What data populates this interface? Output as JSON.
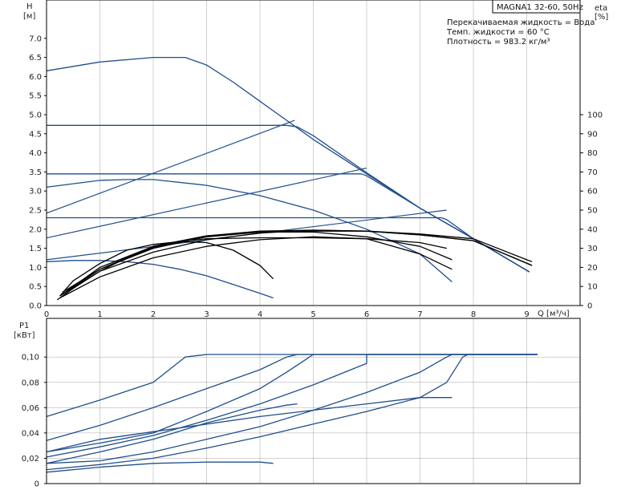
{
  "title": "MAGNA1 32-60, 50Hz",
  "info_lines": [
    "Перекачиваемая жидкость = Вода",
    "Темп. жидкости = 60 °C",
    "Плотность = 983.2 кг/м³"
  ],
  "colors": {
    "curve": "#1f4e8c",
    "efficiency": "#000000",
    "frame": "#000000",
    "text": "#222222"
  },
  "chart_data": [
    {
      "type": "line",
      "name": "pump-performance",
      "ylabel": "H",
      "yunit": "[м]",
      "y2label": "eta",
      "y2unit": "[%]",
      "xlabel": "Q [м³/ч]",
      "xlim": [
        0,
        10
      ],
      "ylim": [
        0,
        7.0
      ],
      "y2lim": [
        0,
        100
      ],
      "x_ticks": [
        "0",
        "1",
        "2",
        "3",
        "4",
        "5",
        "6",
        "7",
        "8",
        "9"
      ],
      "y_ticks": [
        "0.0",
        "0.5",
        "1.0",
        "1.5",
        "2.0",
        "2.5",
        "3.0",
        "3.5",
        "4.0",
        "4.5",
        "5.0",
        "5.5",
        "6.0",
        "6.5",
        "7.0"
      ],
      "y2_ticks": [
        "0",
        "10",
        "20",
        "30",
        "40",
        "50",
        "60",
        "70",
        "80",
        "90",
        "100"
      ],
      "grid": true,
      "hq_curves": [
        {
          "points": [
            [
              0,
              6.15
            ],
            [
              1,
              6.38
            ],
            [
              2,
              6.5
            ],
            [
              2.6,
              6.5
            ],
            [
              3,
              6.3
            ],
            [
              3.5,
              5.85
            ],
            [
              4,
              5.35
            ],
            [
              4.5,
              4.85
            ],
            [
              5,
              4.35
            ],
            [
              6,
              3.45
            ],
            [
              7,
              2.55
            ],
            [
              8,
              1.75
            ],
            [
              9.05,
              0.88
            ]
          ]
        },
        {
          "points": [
            [
              0,
              4.72
            ],
            [
              4.5,
              4.72
            ],
            [
              4.7,
              4.68
            ],
            [
              5,
              4.45
            ],
            [
              6,
              3.48
            ],
            [
              7,
              2.55
            ],
            [
              8,
              1.75
            ],
            [
              9.05,
              0.88
            ]
          ]
        },
        {
          "points": [
            [
              0,
              3.45
            ],
            [
              5.9,
              3.45
            ],
            [
              6,
              3.4
            ],
            [
              7,
              2.55
            ],
            [
              8,
              1.75
            ],
            [
              9.05,
              0.88
            ]
          ]
        },
        {
          "points": [
            [
              0,
              2.3
            ],
            [
              7.4,
              2.3
            ],
            [
              7.5,
              2.25
            ],
            [
              8,
              1.75
            ],
            [
              9.05,
              0.88
            ]
          ]
        },
        {
          "points": [
            [
              0,
              3.1
            ],
            [
              1,
              3.28
            ],
            [
              1.5,
              3.3
            ],
            [
              2,
              3.3
            ],
            [
              3,
              3.15
            ],
            [
              4,
              2.88
            ],
            [
              5,
              2.5
            ],
            [
              6,
              2.0
            ],
            [
              7,
              1.35
            ],
            [
              7.6,
              0.62
            ]
          ]
        },
        {
          "points": [
            [
              0,
              1.15
            ],
            [
              0.5,
              1.18
            ],
            [
              1,
              1.18
            ],
            [
              1.5,
              1.15
            ],
            [
              2,
              1.08
            ],
            [
              2.5,
              0.95
            ],
            [
              3,
              0.78
            ],
            [
              3.5,
              0.55
            ],
            [
              4,
              0.32
            ],
            [
              4.25,
              0.2
            ]
          ]
        }
      ],
      "system_curves": [
        {
          "points": [
            [
              0,
              2.42
            ],
            [
              4.65,
              4.85
            ]
          ]
        },
        {
          "points": [
            [
              0,
              1.77
            ],
            [
              6,
              3.6
            ]
          ]
        },
        {
          "points": [
            [
              0,
              1.2
            ],
            [
              7.5,
              2.5
            ]
          ]
        }
      ],
      "efficiency_curves": [
        {
          "points": [
            [
              0.25,
              5
            ],
            [
              0.5,
              13
            ],
            [
              1,
              22
            ],
            [
              1.5,
              29
            ],
            [
              2,
              32
            ],
            [
              2.5,
              33.5
            ],
            [
              3,
              33
            ],
            [
              3.5,
              29
            ],
            [
              4,
              21
            ],
            [
              4.25,
              14
            ]
          ]
        },
        {
          "points": [
            [
              0.2,
              3
            ],
            [
              0.5,
              9
            ],
            [
              1,
              18
            ],
            [
              1.5,
              25
            ],
            [
              2,
              30.5
            ],
            [
              2.5,
              33.5
            ],
            [
              3,
              35
            ],
            [
              4,
              35.5
            ],
            [
              5,
              35.5
            ],
            [
              6,
              35
            ],
            [
              7,
              33
            ],
            [
              7.5,
              30
            ]
          ]
        },
        {
          "points": [
            [
              0.25,
              4
            ],
            [
              1,
              15
            ],
            [
              2,
              25
            ],
            [
              3,
              31
            ],
            [
              4,
              34.5
            ],
            [
              5,
              36
            ],
            [
              6,
              35
            ],
            [
              7,
              27
            ],
            [
              7.6,
              19
            ]
          ]
        },
        {
          "points": [
            [
              0.3,
              7
            ],
            [
              1,
              19
            ],
            [
              2,
              31
            ],
            [
              3,
              36.5
            ],
            [
              4,
              38.5
            ],
            [
              5,
              38.5
            ],
            [
              6,
              36
            ],
            [
              7,
              31
            ],
            [
              7.6,
              24
            ]
          ]
        },
        {
          "points": [
            [
              0.25,
              5
            ],
            [
              1,
              18
            ],
            [
              2,
              28
            ],
            [
              3,
              34.5
            ],
            [
              4,
              38
            ],
            [
              5,
              39.5
            ],
            [
              6,
              39
            ],
            [
              7,
              37.5
            ],
            [
              8,
              35
            ],
            [
              9,
              24
            ],
            [
              9.1,
              23
            ]
          ]
        },
        {
          "points": [
            [
              0.3,
              6
            ],
            [
              1,
              19
            ],
            [
              2,
              30
            ],
            [
              3,
              36
            ],
            [
              4,
              38.5
            ],
            [
              5,
              39
            ],
            [
              6,
              39
            ],
            [
              7,
              37
            ],
            [
              8,
              34
            ],
            [
              9.1,
              21
            ]
          ]
        },
        {
          "points": [
            [
              0.3,
              6
            ],
            [
              1,
              20
            ],
            [
              2,
              31
            ],
            [
              3,
              36.5
            ],
            [
              4,
              39
            ],
            [
              5,
              39.5
            ],
            [
              6,
              39
            ],
            [
              7,
              37
            ],
            [
              8,
              34
            ],
            [
              9.1,
              21
            ]
          ]
        }
      ]
    },
    {
      "type": "line",
      "name": "power-input",
      "ylabel": "P1",
      "yunit": "[кВт]",
      "xlim": [
        0,
        10
      ],
      "ylim": [
        0,
        0.1
      ],
      "y_ticks": [
        "0",
        "0,02",
        "0,04",
        "0,06",
        "0,08",
        "0,10"
      ],
      "grid": true,
      "series": [
        {
          "points": [
            [
              0,
              0.053
            ],
            [
              1,
              0.066
            ],
            [
              2,
              0.08
            ],
            [
              2.6,
              0.1
            ],
            [
              3,
              0.102
            ],
            [
              9.2,
              0.102
            ]
          ]
        },
        {
          "points": [
            [
              0,
              0.034
            ],
            [
              1,
              0.046
            ],
            [
              2,
              0.06
            ],
            [
              3,
              0.075
            ],
            [
              4,
              0.09
            ],
            [
              4.5,
              0.1
            ],
            [
              4.7,
              0.102
            ],
            [
              9.2,
              0.102
            ]
          ]
        },
        {
          "points": [
            [
              0,
              0.025
            ],
            [
              1,
              0.032
            ],
            [
              2,
              0.04
            ],
            [
              3,
              0.057
            ],
            [
              4,
              0.075
            ],
            [
              4.5,
              0.088
            ],
            [
              5,
              0.102
            ],
            [
              9.2,
              0.102
            ]
          ]
        },
        {
          "points": [
            [
              0,
              0.021
            ],
            [
              1,
              0.029
            ],
            [
              2,
              0.038
            ],
            [
              3,
              0.05
            ],
            [
              4,
              0.063
            ],
            [
              5,
              0.078
            ],
            [
              6,
              0.095
            ],
            [
              6,
              0.102
            ],
            [
              9.2,
              0.102
            ]
          ]
        },
        {
          "points": [
            [
              0,
              0.016
            ],
            [
              1,
              0.025
            ],
            [
              2,
              0.035
            ],
            [
              3,
              0.048
            ],
            [
              4,
              0.058
            ],
            [
              4.5,
              0.062
            ],
            [
              4.7,
              0.063
            ]
          ]
        },
        {
          "points": [
            [
              0,
              0.016
            ],
            [
              1,
              0.018
            ],
            [
              2,
              0.025
            ],
            [
              3,
              0.035
            ],
            [
              4,
              0.045
            ],
            [
              5,
              0.058
            ],
            [
              6,
              0.072
            ],
            [
              7,
              0.088
            ],
            [
              7.5,
              0.1
            ],
            [
              7.6,
              0.102
            ],
            [
              9.2,
              0.102
            ]
          ]
        },
        {
          "points": [
            [
              0,
              0.025
            ],
            [
              1,
              0.035
            ],
            [
              2,
              0.041
            ],
            [
              3,
              0.047
            ],
            [
              4,
              0.053
            ],
            [
              5,
              0.058
            ],
            [
              6,
              0.063
            ],
            [
              7,
              0.068
            ],
            [
              7.6,
              0.068
            ]
          ]
        },
        {
          "points": [
            [
              0,
              0.011
            ],
            [
              1,
              0.015
            ],
            [
              2,
              0.02
            ],
            [
              3,
              0.028
            ],
            [
              4,
              0.037
            ],
            [
              5,
              0.047
            ],
            [
              6,
              0.057
            ],
            [
              7,
              0.068
            ],
            [
              7.5,
              0.08
            ],
            [
              7.8,
              0.1
            ],
            [
              7.9,
              0.102
            ],
            [
              9.2,
              0.102
            ]
          ]
        },
        {
          "points": [
            [
              0,
              0.009
            ],
            [
              1,
              0.013
            ],
            [
              2,
              0.016
            ],
            [
              3,
              0.017
            ],
            [
              4,
              0.017
            ],
            [
              4.25,
              0.016
            ]
          ]
        }
      ]
    }
  ]
}
